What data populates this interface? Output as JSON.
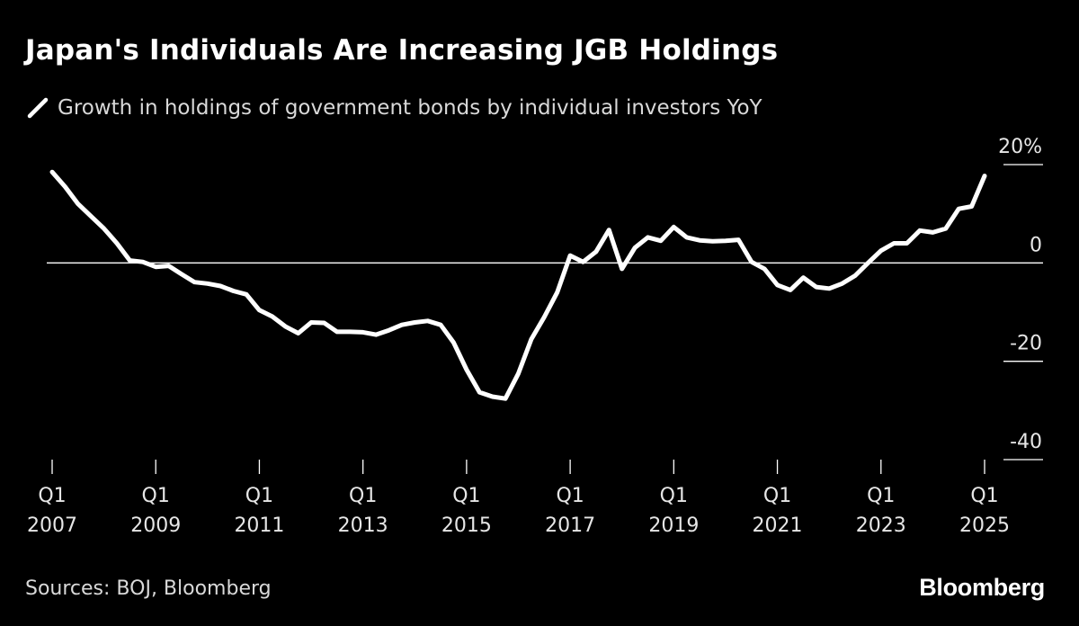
{
  "title": "Japan's Individuals Are Increasing JGB Holdings",
  "legend": {
    "label": "Growth in holdings of government bonds by individual investors YoY"
  },
  "source": "Sources: BOJ, Bloomberg",
  "brand": "Bloomberg",
  "colors": {
    "background": "#000000",
    "line": "#ffffff",
    "zero_line": "#ffffff",
    "tick_text": "#e6e6e6"
  },
  "chart_data": {
    "type": "line",
    "title": "Japan's Individuals Are Increasing JGB Holdings",
    "xlabel": "",
    "ylabel": "",
    "ylim": [
      -40,
      20
    ],
    "y_ticks": [
      {
        "value": 20,
        "label": "20%"
      },
      {
        "value": 0,
        "label": "0"
      },
      {
        "value": -20,
        "label": "-20"
      },
      {
        "value": -40,
        "label": "-40"
      }
    ],
    "x_ticks": [
      {
        "x": 2007.0,
        "q": "Q1",
        "year": "2007"
      },
      {
        "x": 2009.0,
        "q": "Q1",
        "year": "2009"
      },
      {
        "x": 2011.0,
        "q": "Q1",
        "year": "2011"
      },
      {
        "x": 2013.0,
        "q": "Q1",
        "year": "2013"
      },
      {
        "x": 2015.0,
        "q": "Q1",
        "year": "2015"
      },
      {
        "x": 2017.0,
        "q": "Q1",
        "year": "2017"
      },
      {
        "x": 2019.0,
        "q": "Q1",
        "year": "2019"
      },
      {
        "x": 2021.0,
        "q": "Q1",
        "year": "2021"
      },
      {
        "x": 2023.0,
        "q": "Q1",
        "year": "2023"
      },
      {
        "x": 2025.0,
        "q": "Q1",
        "year": "2025"
      }
    ],
    "series": [
      {
        "name": "Growth in holdings of government bonds by individual investors YoY",
        "x": [
          2007.0,
          2007.25,
          2007.5,
          2007.75,
          2008.0,
          2008.25,
          2008.5,
          2008.75,
          2009.0,
          2009.25,
          2009.5,
          2009.75,
          2010.0,
          2010.25,
          2010.5,
          2010.75,
          2011.0,
          2011.25,
          2011.5,
          2011.75,
          2012.0,
          2012.25,
          2012.5,
          2012.75,
          2013.0,
          2013.25,
          2013.5,
          2013.75,
          2014.0,
          2014.25,
          2014.5,
          2014.75,
          2015.0,
          2015.25,
          2015.5,
          2015.75,
          2016.0,
          2016.25,
          2016.5,
          2016.75,
          2017.0,
          2017.25,
          2017.5,
          2017.75,
          2018.0,
          2018.25,
          2018.5,
          2018.75,
          2019.0,
          2019.25,
          2019.5,
          2019.75,
          2020.0,
          2020.25,
          2020.5,
          2020.75,
          2021.0,
          2021.25,
          2021.5,
          2021.75,
          2022.0,
          2022.25,
          2022.5,
          2022.75,
          2023.0,
          2023.25,
          2023.5,
          2023.75,
          2024.0,
          2024.25,
          2024.5,
          2024.75,
          2025.0
        ],
        "values": [
          18.5,
          15.5,
          12.0,
          9.5,
          7.0,
          4.0,
          0.5,
          0.2,
          -0.8,
          -0.6,
          -2.3,
          -3.9,
          -4.2,
          -4.7,
          -5.7,
          -6.4,
          -9.6,
          -10.9,
          -12.9,
          -14.3,
          -12.1,
          -12.2,
          -14.0,
          -14.0,
          -14.1,
          -14.6,
          -13.7,
          -12.6,
          -12.1,
          -11.8,
          -12.6,
          -16.2,
          -21.7,
          -26.3,
          -27.2,
          -27.6,
          -22.5,
          -15.5,
          -11.0,
          -6.0,
          1.5,
          0.2,
          2.3,
          6.7,
          -1.2,
          3.1,
          5.2,
          4.5,
          7.3,
          5.2,
          4.6,
          4.4,
          4.5,
          4.7,
          0.2,
          -1.2,
          -4.5,
          -5.5,
          -3.0,
          -4.9,
          -5.2,
          -4.2,
          -2.6,
          0.0,
          2.5,
          4.0,
          4.0,
          6.6,
          6.2,
          7.0,
          11.0,
          11.5,
          17.7
        ]
      }
    ]
  }
}
